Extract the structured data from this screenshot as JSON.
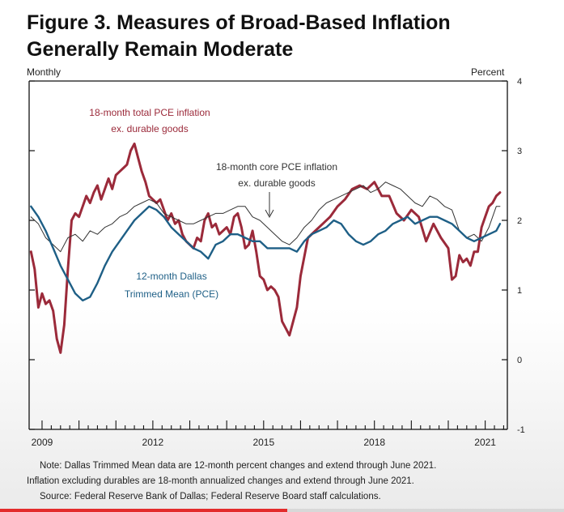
{
  "title_line1": "Figure 3. Measures of Broad-Based Inflation",
  "title_line2": "Generally Remain Moderate",
  "chart_data": {
    "type": "line",
    "left_axis_label": "Monthly",
    "right_axis_label": "Percent",
    "xlim": [
      2008.65,
      2021.6
    ],
    "ylim": [
      -1,
      4
    ],
    "y_ticks": [
      -1,
      0,
      1,
      2,
      3,
      4
    ],
    "x_tick_labels": [
      "2009",
      "2012",
      "2015",
      "2018",
      "2021"
    ],
    "x_tick_positions": [
      2009,
      2012,
      2015,
      2018,
      2021
    ],
    "annotations": [
      {
        "text": "18-month total PCE inflation",
        "series": "total"
      },
      {
        "text": "ex. durable goods",
        "series": "total"
      },
      {
        "text": "18-month core PCE inflation",
        "series": "core"
      },
      {
        "text": "ex. durable goods",
        "series": "core"
      },
      {
        "text": "12-month Dallas",
        "series": "dallas"
      },
      {
        "text": "Trimmed Mean (PCE)",
        "series": "dallas"
      }
    ],
    "series": [
      {
        "key": "total",
        "color": "#9b2a3a",
        "x": [
          2008.7,
          2008.8,
          2008.9,
          2009.0,
          2009.1,
          2009.2,
          2009.3,
          2009.4,
          2009.5,
          2009.6,
          2009.7,
          2009.8,
          2009.9,
          2010.0,
          2010.1,
          2010.2,
          2010.3,
          2010.4,
          2010.5,
          2010.6,
          2010.7,
          2010.8,
          2010.9,
          2011.0,
          2011.1,
          2011.2,
          2011.3,
          2011.4,
          2011.5,
          2011.6,
          2011.7,
          2011.8,
          2011.9,
          2012.0,
          2012.1,
          2012.2,
          2012.3,
          2012.4,
          2012.5,
          2012.6,
          2012.7,
          2012.8,
          2012.9,
          2013.0,
          2013.1,
          2013.2,
          2013.3,
          2013.4,
          2013.5,
          2013.6,
          2013.7,
          2013.8,
          2013.9,
          2014.0,
          2014.1,
          2014.2,
          2014.3,
          2014.4,
          2014.5,
          2014.6,
          2014.7,
          2014.8,
          2014.9,
          2015.0,
          2015.1,
          2015.2,
          2015.3,
          2015.4,
          2015.5,
          2015.6,
          2015.7,
          2015.8,
          2015.9,
          2016.0,
          2016.2,
          2016.4,
          2016.6,
          2016.8,
          2017.0,
          2017.2,
          2017.4,
          2017.6,
          2017.8,
          2018.0,
          2018.2,
          2018.4,
          2018.6,
          2018.8,
          2019.0,
          2019.2,
          2019.4,
          2019.6,
          2019.8,
          2020.0,
          2020.1,
          2020.2,
          2020.3,
          2020.4,
          2020.5,
          2020.6,
          2020.7,
          2020.8,
          2020.9,
          2021.0,
          2021.1,
          2021.2,
          2021.3,
          2021.4
        ],
        "y": [
          1.55,
          1.3,
          0.75,
          0.95,
          0.8,
          0.85,
          0.7,
          0.3,
          0.1,
          0.5,
          1.3,
          2.0,
          2.1,
          2.05,
          2.2,
          2.35,
          2.25,
          2.4,
          2.5,
          2.3,
          2.45,
          2.6,
          2.45,
          2.65,
          2.7,
          2.75,
          2.8,
          3.0,
          3.1,
          2.9,
          2.7,
          2.55,
          2.35,
          2.3,
          2.25,
          2.3,
          2.15,
          2.0,
          2.1,
          1.95,
          2.0,
          1.8,
          1.7,
          1.65,
          1.6,
          1.75,
          1.7,
          2.0,
          2.1,
          1.9,
          1.95,
          1.8,
          1.85,
          1.9,
          1.8,
          2.05,
          2.1,
          1.9,
          1.6,
          1.65,
          1.85,
          1.55,
          1.2,
          1.15,
          1.0,
          1.05,
          1.0,
          0.9,
          0.55,
          0.45,
          0.35,
          0.55,
          0.75,
          1.2,
          1.75,
          1.85,
          1.95,
          2.05,
          2.2,
          2.3,
          2.45,
          2.5,
          2.45,
          2.55,
          2.35,
          2.35,
          2.1,
          2.0,
          2.15,
          2.05,
          1.7,
          1.95,
          1.75,
          1.6,
          1.15,
          1.2,
          1.5,
          1.4,
          1.45,
          1.35,
          1.55,
          1.55,
          1.9,
          2.05,
          2.2,
          2.25,
          2.35,
          2.4
        ]
      },
      {
        "key": "core",
        "color": "#333333",
        "x": [
          2008.7,
          2008.9,
          2009.1,
          2009.3,
          2009.5,
          2009.7,
          2009.9,
          2010.1,
          2010.3,
          2010.5,
          2010.7,
          2010.9,
          2011.1,
          2011.3,
          2011.5,
          2011.7,
          2011.9,
          2012.1,
          2012.3,
          2012.5,
          2012.7,
          2012.9,
          2013.1,
          2013.3,
          2013.5,
          2013.7,
          2013.9,
          2014.1,
          2014.3,
          2014.5,
          2014.7,
          2014.9,
          2015.1,
          2015.3,
          2015.5,
          2015.7,
          2015.9,
          2016.1,
          2016.3,
          2016.5,
          2016.7,
          2016.9,
          2017.1,
          2017.3,
          2017.5,
          2017.7,
          2017.9,
          2018.1,
          2018.3,
          2018.5,
          2018.7,
          2018.9,
          2019.1,
          2019.3,
          2019.5,
          2019.7,
          2019.9,
          2020.1,
          2020.3,
          2020.5,
          2020.7,
          2020.9,
          2021.1,
          2021.3,
          2021.4
        ],
        "y": [
          2.05,
          1.95,
          1.75,
          1.65,
          1.55,
          1.75,
          1.8,
          1.7,
          1.85,
          1.8,
          1.9,
          1.95,
          2.05,
          2.1,
          2.2,
          2.25,
          2.3,
          2.25,
          2.1,
          2.05,
          2.0,
          1.95,
          1.95,
          2.0,
          2.05,
          2.1,
          2.1,
          2.15,
          2.2,
          2.2,
          2.05,
          2.0,
          1.9,
          1.8,
          1.7,
          1.65,
          1.75,
          1.9,
          2.0,
          2.15,
          2.25,
          2.3,
          2.35,
          2.4,
          2.45,
          2.5,
          2.4,
          2.45,
          2.55,
          2.5,
          2.45,
          2.35,
          2.25,
          2.2,
          2.35,
          2.3,
          2.2,
          2.15,
          1.85,
          1.75,
          1.8,
          1.7,
          1.9,
          2.2,
          2.2
        ]
      },
      {
        "key": "dallas",
        "color": "#1e5f86",
        "x": [
          2008.7,
          2008.9,
          2009.1,
          2009.3,
          2009.5,
          2009.7,
          2009.9,
          2010.1,
          2010.3,
          2010.5,
          2010.7,
          2010.9,
          2011.1,
          2011.3,
          2011.5,
          2011.7,
          2011.9,
          2012.1,
          2012.3,
          2012.5,
          2012.7,
          2012.9,
          2013.1,
          2013.3,
          2013.5,
          2013.7,
          2013.9,
          2014.1,
          2014.3,
          2014.5,
          2014.7,
          2014.9,
          2015.1,
          2015.3,
          2015.5,
          2015.7,
          2015.9,
          2016.1,
          2016.3,
          2016.5,
          2016.7,
          2016.9,
          2017.1,
          2017.3,
          2017.5,
          2017.7,
          2017.9,
          2018.1,
          2018.3,
          2018.5,
          2018.7,
          2018.9,
          2019.1,
          2019.3,
          2019.5,
          2019.7,
          2019.9,
          2020.1,
          2020.3,
          2020.5,
          2020.7,
          2020.9,
          2021.1,
          2021.3,
          2021.4
        ],
        "y": [
          2.2,
          2.05,
          1.85,
          1.6,
          1.35,
          1.15,
          0.95,
          0.85,
          0.9,
          1.1,
          1.35,
          1.55,
          1.7,
          1.85,
          2.0,
          2.1,
          2.2,
          2.15,
          2.05,
          1.9,
          1.8,
          1.7,
          1.6,
          1.55,
          1.45,
          1.65,
          1.7,
          1.8,
          1.8,
          1.75,
          1.7,
          1.7,
          1.6,
          1.6,
          1.6,
          1.6,
          1.55,
          1.7,
          1.8,
          1.85,
          1.9,
          2.0,
          1.95,
          1.8,
          1.7,
          1.65,
          1.7,
          1.8,
          1.85,
          1.95,
          2.0,
          2.05,
          1.95,
          2.0,
          2.05,
          2.05,
          2.0,
          1.95,
          1.85,
          1.75,
          1.7,
          1.75,
          1.8,
          1.85,
          1.95
        ]
      }
    ]
  },
  "notes": {
    "line1": "Note:  Dallas Trimmed Mean data are 12-month percent changes and extend through June 2021.",
    "line2": "Inflation excluding durables are 18-month annualized changes and extend through June 2021.",
    "line3": "Source:  Federal Reserve Bank of Dallas; Federal Reserve Board staff calculations."
  },
  "video_progress": 0.51,
  "colors": {
    "progress": "#e32b2b",
    "track": "#d8d8d8"
  }
}
